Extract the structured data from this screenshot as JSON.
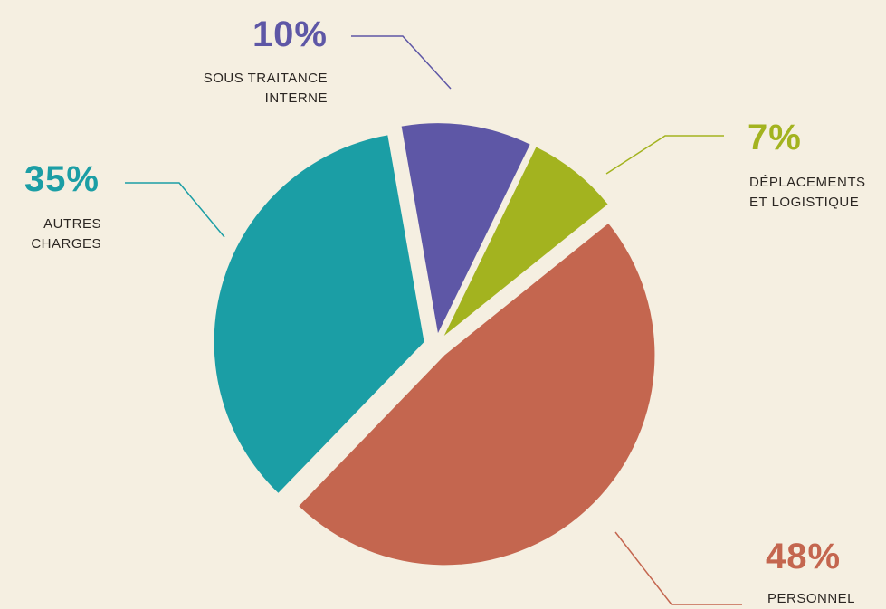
{
  "chart_data": {
    "type": "pie",
    "categories": [
      "SOUS TRAITANCE INTERNE",
      "DÉPLACEMENTS ET LOGISTIQUE",
      "PERSONNEL",
      "AUTRES CHARGES"
    ],
    "values": [
      10,
      7,
      48,
      35
    ],
    "value_labels": [
      "10%",
      "7%",
      "48%",
      "35%"
    ],
    "colors": [
      "#5e57a6",
      "#a3b31f",
      "#c4664f",
      "#1b9ea5"
    ]
  }
}
